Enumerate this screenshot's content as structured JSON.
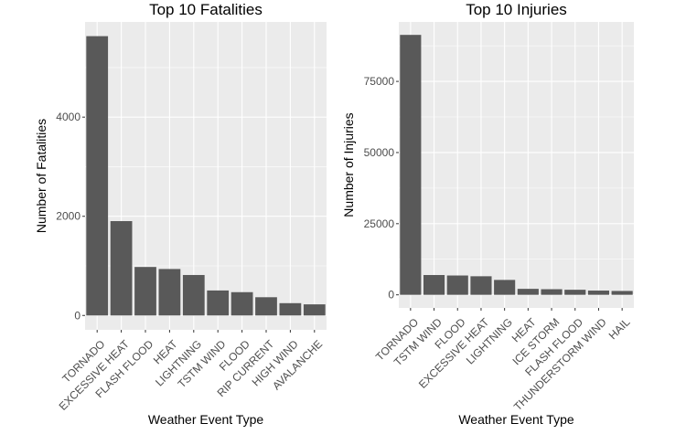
{
  "chart_data": [
    {
      "type": "bar",
      "title": "Top 10 Fatalities",
      "xlabel": "Weather Event Type",
      "ylabel": "Number of Fatalities",
      "categories": [
        "TORNADO",
        "EXCESSIVE HEAT",
        "FLASH FLOOD",
        "HEAT",
        "LIGHTNING",
        "TSTM WIND",
        "FLOOD",
        "RIP CURRENT",
        "HIGH WIND",
        "AVALANCHE"
      ],
      "values": [
        5633,
        1903,
        978,
        937,
        816,
        504,
        470,
        368,
        248,
        224
      ],
      "ylim": [
        -290,
        5920
      ],
      "yticks": [
        0,
        2000,
        4000
      ],
      "ytick_labels": [
        "0",
        "2000",
        "4000"
      ],
      "grid": true,
      "colors": {
        "bar": "#595959",
        "panel": "#ebebeb",
        "grid": "#ffffff",
        "text": "#000000",
        "tick": "#4d4d4d"
      }
    },
    {
      "type": "bar",
      "title": "Top 10 Injuries",
      "xlabel": "Weather Event Type",
      "ylabel": "Number of Injuries",
      "categories": [
        "TORNADO",
        "TSTM WIND",
        "FLOOD",
        "EXCESSIVE HEAT",
        "LIGHTNING",
        "HEAT",
        "ICE STORM",
        "FLASH FLOOD",
        "THUNDERSTORM WIND",
        "HAIL"
      ],
      "values": [
        91346,
        6957,
        6789,
        6525,
        5230,
        2100,
        1975,
        1777,
        1488,
        1361
      ],
      "ylim": [
        -4600,
        95900
      ],
      "yticks": [
        0,
        25000,
        50000,
        75000
      ],
      "ytick_labels": [
        "0",
        "25000",
        "50000",
        "75000"
      ],
      "grid": true,
      "colors": {
        "bar": "#595959",
        "panel": "#ebebeb",
        "grid": "#ffffff",
        "text": "#000000",
        "tick": "#4d4d4d"
      }
    }
  ]
}
